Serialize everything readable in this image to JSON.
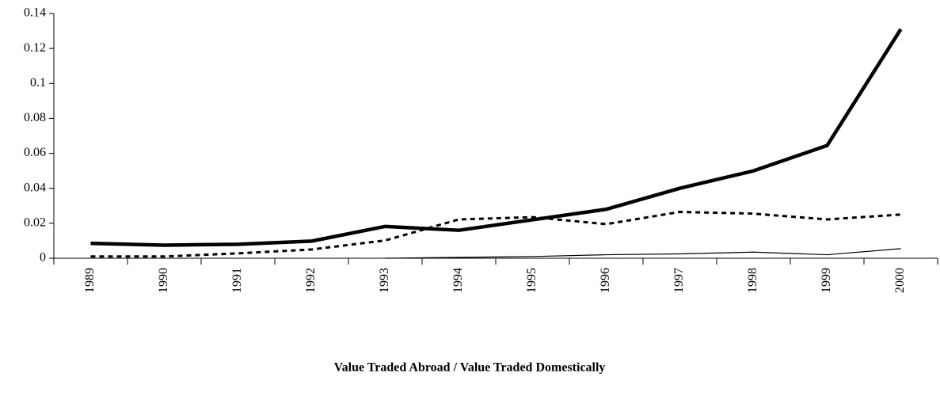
{
  "chart_data": {
    "type": "line",
    "title": "Value Traded Abroad / Value Traded Domestically",
    "categories": [
      "1989",
      "1990",
      "1991",
      "1992",
      "1993",
      "1994",
      "1995",
      "1996",
      "1997",
      "1998",
      "1999",
      "2000"
    ],
    "series": [
      {
        "color": "#000000",
        "width": 4.5,
        "style": "solid",
        "values": [
          0.0085,
          0.0075,
          0.008,
          0.0098,
          0.0182,
          0.016,
          0.022,
          0.028,
          0.04,
          0.05,
          0.0645,
          0.131
        ]
      },
      {
        "color": "#000000",
        "width": 3,
        "style": "dashed",
        "values": [
          0.001,
          0.001,
          0.0028,
          0.005,
          0.0102,
          0.0222,
          0.0235,
          0.0195,
          0.0265,
          0.0255,
          0.0222,
          0.025
        ]
      },
      {
        "color": "#000000",
        "width": 1.2,
        "style": "solid",
        "values": [
          null,
          null,
          null,
          null,
          0,
          0.0005,
          0.001,
          0.002,
          0.0025,
          0.0035,
          0.002,
          0.0055
        ]
      }
    ],
    "ylim": [
      0,
      0.14
    ],
    "yticks": [
      0,
      0.02,
      0.04,
      0.06,
      0.08,
      0.1,
      0.12,
      0.14
    ],
    "grid": false
  }
}
